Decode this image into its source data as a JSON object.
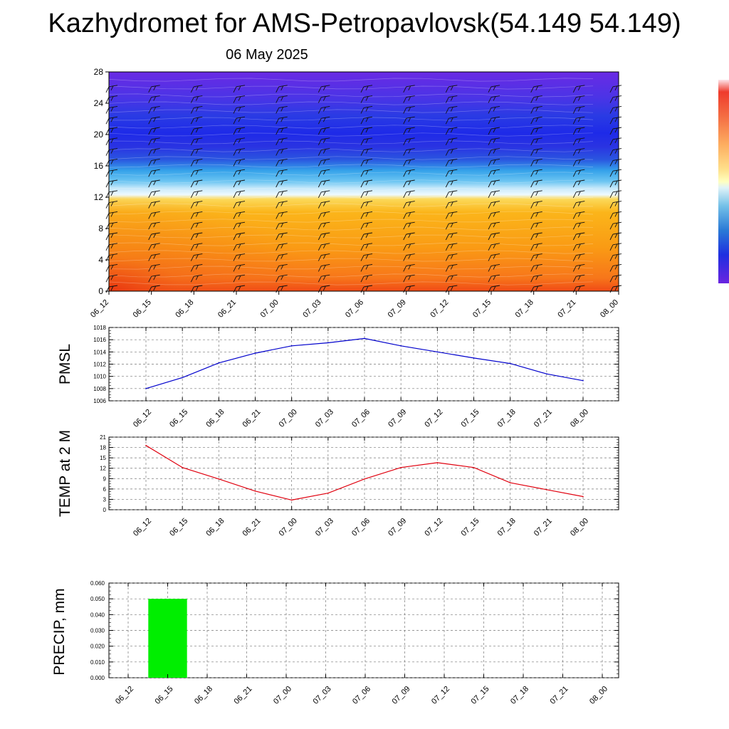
{
  "header": {
    "title": "Kazhydromet for AMS-Petropavlovsk(54.149 54.149)",
    "date": "06 May 2025"
  },
  "colors": {
    "pmsl": "#0000cc",
    "temp": "#e0000e",
    "precip": "#00ee00"
  },
  "chart_data": [
    {
      "type": "heatmap",
      "x_ticks": [
        "06_12",
        "06_15",
        "06_18",
        "06_21",
        "07_00",
        "07_03",
        "07_06",
        "07_09",
        "07_12",
        "07_15",
        "07_18",
        "07_21",
        "08_00"
      ],
      "y_ticks": [
        "0",
        "4",
        "8",
        "12",
        "16",
        "20",
        "24",
        "28"
      ],
      "ylim": [
        0,
        28
      ],
      "levels": [
        0,
        4,
        8,
        12,
        16,
        20,
        24,
        28
      ],
      "colors": [
        "#f25c1c",
        "#fa8d14",
        "#fba914",
        "#f8d044",
        "#4bb8f0",
        "#2a3fd9",
        "#2330e3",
        "#5d2ee8"
      ],
      "wind_barbs": true
    },
    {
      "type": "line",
      "ylabel": "PMSL",
      "x": [
        "06_12",
        "06_15",
        "06_18",
        "06_21",
        "07_00",
        "07_03",
        "07_06",
        "07_09",
        "07_12",
        "07_15",
        "07_18",
        "07_21",
        "08_00"
      ],
      "y_ticks": [
        "1006",
        "1008",
        "1010",
        "1012",
        "1014",
        "1016",
        "1018"
      ],
      "ylim": [
        1006,
        1018
      ],
      "series": [
        {
          "values": [
            1008.0,
            1009.8,
            1012.2,
            1013.8,
            1015.0,
            1015.5,
            1016.2,
            1015.0,
            1014.0,
            1013.0,
            1012.1,
            1010.4,
            1009.3
          ]
        }
      ],
      "grid": true
    },
    {
      "type": "line",
      "ylabel": "TEMP at 2 M",
      "x": [
        "06_12",
        "06_15",
        "06_18",
        "06_21",
        "07_00",
        "07_03",
        "07_06",
        "07_09",
        "07_12",
        "07_15",
        "07_18",
        "07_21",
        "08_00"
      ],
      "y_ticks": [
        "0",
        "3",
        "6",
        "9",
        "12",
        "15",
        "18",
        "21"
      ],
      "ylim": [
        0,
        21
      ],
      "series": [
        {
          "values": [
            18.6,
            12.2,
            8.9,
            5.4,
            2.8,
            4.8,
            8.9,
            12.2,
            13.6,
            12.2,
            7.8,
            5.8,
            3.8
          ]
        }
      ],
      "grid": true
    },
    {
      "type": "bar",
      "ylabel": "PRECIP, mm",
      "categories": [
        "06_12",
        "06_15",
        "06_18",
        "06_21",
        "07_00",
        "07_03",
        "07_06",
        "07_09",
        "07_12",
        "07_15",
        "07_18",
        "07_21",
        "08_00"
      ],
      "values": [
        0,
        0.05,
        0,
        0,
        0,
        0,
        0,
        0,
        0,
        0,
        0,
        0,
        0
      ],
      "y_ticks": [
        "0.000",
        "0.010",
        "0.020",
        "0.030",
        "0.040",
        "0.050",
        "0.060"
      ],
      "ylim": [
        0,
        0.06
      ],
      "grid": true
    }
  ]
}
